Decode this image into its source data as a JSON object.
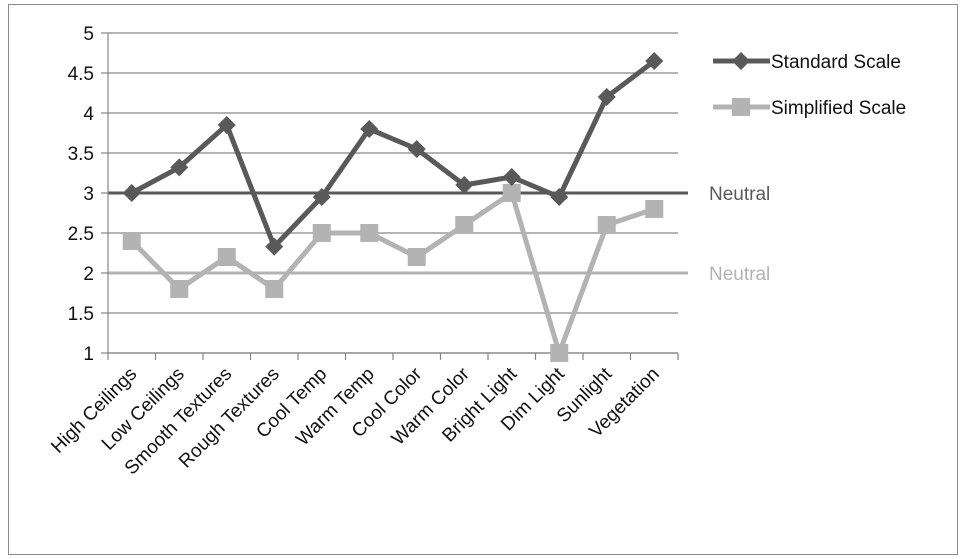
{
  "chart_data": {
    "type": "line",
    "title": "",
    "xlabel": "",
    "ylabel": "",
    "ylim": [
      1,
      5
    ],
    "yticks": [
      "1",
      "1.5",
      "2",
      "2.5",
      "3",
      "3.5",
      "4",
      "4.5",
      "5"
    ],
    "grid": true,
    "legend_position": "top-right",
    "categories": [
      "High Ceilings",
      "Low Ceilings",
      "Smooth Textures",
      "Rough Textures",
      "Cool Temp",
      "Warm Temp",
      "Cool Color",
      "Warm Color",
      "Bright Light",
      "Dim Light",
      "Sunlight",
      "Vegetation"
    ],
    "series": [
      {
        "name": "Standard Scale",
        "color": "#595959",
        "marker": "diamond",
        "values": [
          3.0,
          3.32,
          3.85,
          2.33,
          2.95,
          3.8,
          3.55,
          3.1,
          3.2,
          2.95,
          4.2,
          4.65
        ]
      },
      {
        "name": "Simplified Scale",
        "color": "#b3b3b3",
        "marker": "square",
        "values": [
          2.4,
          1.8,
          2.2,
          1.8,
          2.5,
          2.5,
          2.2,
          2.6,
          3.0,
          1.0,
          2.6,
          2.8
        ]
      }
    ],
    "reference_lines": [
      {
        "label": "Neutral",
        "value": 3,
        "color": "#595959"
      },
      {
        "label": "Neutral",
        "value": 2,
        "color": "#b3b3b3"
      }
    ]
  }
}
